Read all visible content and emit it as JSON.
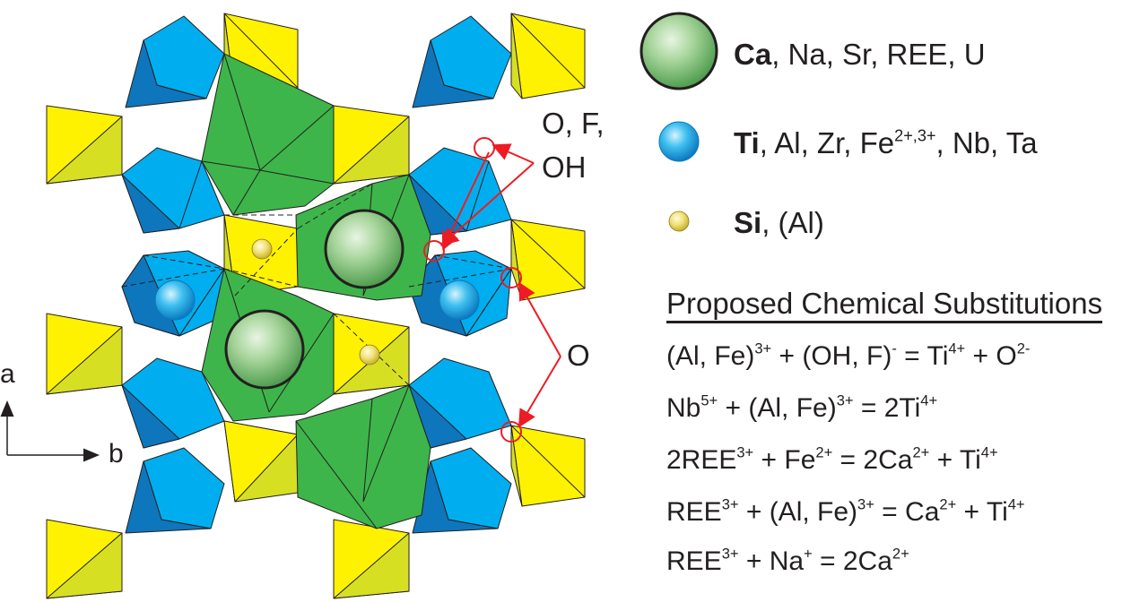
{
  "structure": {
    "site_labels": {
      "anion_site": "O, F,",
      "anion_site_2": "OH",
      "oxygen_site": "O"
    },
    "axes": {
      "vertical": "a",
      "horizontal": "b"
    },
    "colors": {
      "ca_polyhedron": "#3db54a",
      "ti_octahedron": "#00aeef",
      "ti_dark": "#0e76bc",
      "si_tetrahedron": "#fff200",
      "si_dark": "#d7df23",
      "arrow": "#ed1c24"
    }
  },
  "legend": [
    {
      "icon": "ca-sphere-icon",
      "bold": "Ca",
      "rest": ", Na, Sr, REE, U",
      "sup": "",
      "tail": ""
    },
    {
      "icon": "ti-sphere-icon",
      "bold": "Ti",
      "rest": ", Al, Zr, Fe",
      "sup": "2+,3+",
      "tail": ", Nb, Ta"
    },
    {
      "icon": "si-sphere-icon",
      "bold": "Si",
      "rest": ", (Al)",
      "sup": "",
      "tail": ""
    }
  ],
  "substitutions": {
    "heading": "Proposed Chemical Substitutions",
    "equations": [
      [
        [
          "(Al, Fe)",
          ""
        ],
        [
          "",
          "3+"
        ],
        [
          " + (OH, F)",
          ""
        ],
        [
          "",
          "-"
        ],
        [
          " = Ti",
          ""
        ],
        [
          "",
          "4+"
        ],
        [
          " + O",
          ""
        ],
        [
          "",
          "2-"
        ]
      ],
      [
        [
          "Nb",
          ""
        ],
        [
          "",
          "5+"
        ],
        [
          " + (Al, Fe)",
          ""
        ],
        [
          "",
          "3+"
        ],
        [
          " = 2Ti",
          ""
        ],
        [
          "",
          "4+"
        ]
      ],
      [
        [
          "2REE",
          ""
        ],
        [
          "",
          "3+"
        ],
        [
          " + Fe",
          ""
        ],
        [
          "",
          "2+"
        ],
        [
          " = 2Ca",
          ""
        ],
        [
          "",
          "2+"
        ],
        [
          " + Ti",
          ""
        ],
        [
          "",
          "4+"
        ]
      ],
      [
        [
          "REE",
          ""
        ],
        [
          "",
          "3+"
        ],
        [
          " + (Al, Fe)",
          ""
        ],
        [
          "",
          "3+"
        ],
        [
          " = Ca",
          ""
        ],
        [
          "",
          "2+"
        ],
        [
          " + Ti",
          ""
        ],
        [
          "",
          "4+"
        ]
      ],
      [
        [
          "REE",
          ""
        ],
        [
          "",
          "3+"
        ],
        [
          " + Na",
          ""
        ],
        [
          "",
          "+"
        ],
        [
          " = 2Ca",
          ""
        ],
        [
          "",
          "2+"
        ]
      ]
    ]
  }
}
